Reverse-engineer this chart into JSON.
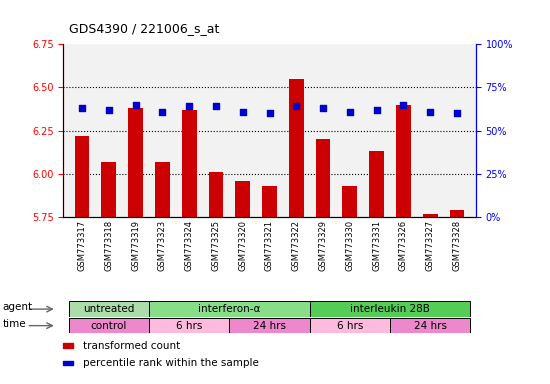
{
  "title": "GDS4390 / 221006_s_at",
  "samples": [
    "GSM773317",
    "GSM773318",
    "GSM773319",
    "GSM773323",
    "GSM773324",
    "GSM773325",
    "GSM773320",
    "GSM773321",
    "GSM773322",
    "GSM773329",
    "GSM773330",
    "GSM773331",
    "GSM773326",
    "GSM773327",
    "GSM773328"
  ],
  "red_values": [
    6.22,
    6.07,
    6.38,
    6.07,
    6.37,
    6.01,
    5.96,
    5.93,
    6.55,
    6.2,
    5.93,
    6.13,
    6.4,
    5.77,
    5.79
  ],
  "blue_pct": [
    63,
    62,
    65,
    61,
    64,
    64,
    61,
    60,
    64,
    63,
    61,
    62,
    65,
    61,
    60
  ],
  "ylim_left": [
    5.75,
    6.75
  ],
  "ylim_right": [
    0,
    100
  ],
  "yticks_left": [
    5.75,
    6.0,
    6.25,
    6.5,
    6.75
  ],
  "yticks_right": [
    0,
    25,
    50,
    75,
    100
  ],
  "ytick_labels_right": [
    "0%",
    "25%",
    "50%",
    "75%",
    "100%"
  ],
  "hlines": [
    6.0,
    6.25,
    6.5
  ],
  "agent_groups": [
    {
      "label": "untreated",
      "start": 0,
      "end": 3,
      "color": "#aaddaa"
    },
    {
      "label": "interferon-α",
      "start": 3,
      "end": 9,
      "color": "#88dd88"
    },
    {
      "label": "interleukin 28B",
      "start": 9,
      "end": 15,
      "color": "#55cc55"
    }
  ],
  "time_groups": [
    {
      "label": "control",
      "start": 0,
      "end": 3,
      "color": "#ee88cc"
    },
    {
      "label": "6 hrs",
      "start": 3,
      "end": 6,
      "color": "#ffbbdd"
    },
    {
      "label": "24 hrs",
      "start": 6,
      "end": 9,
      "color": "#ee88cc"
    },
    {
      "label": "6 hrs",
      "start": 9,
      "end": 12,
      "color": "#ffbbdd"
    },
    {
      "label": "24 hrs",
      "start": 12,
      "end": 15,
      "color": "#ee88cc"
    }
  ],
  "bar_color": "#CC0000",
  "dot_color": "#0000CC",
  "bar_width": 0.55,
  "bar_bottom": 5.75,
  "agent_label": "agent",
  "time_label": "time",
  "legend_items": [
    {
      "color": "#CC0000",
      "label": "transformed count"
    },
    {
      "color": "#0000CC",
      "label": "percentile rank within the sample"
    }
  ],
  "background_color": "#FFFFFF"
}
